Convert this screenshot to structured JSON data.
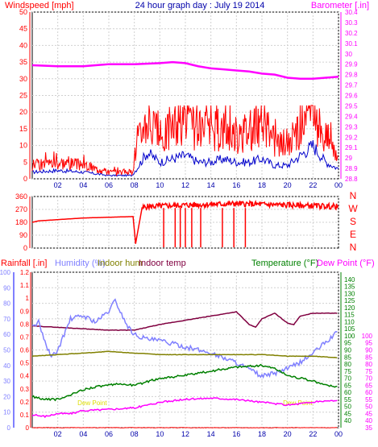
{
  "chart_data": [
    {
      "type": "line",
      "title": "24 hour graph day : July 19 2014",
      "ylabel": "Windspeed [mph]",
      "y2label": "Barometer [.in]",
      "colors": {
        "windspeed": "#ff0000",
        "windavg": "#0000cc",
        "barometer": "#ff00ff",
        "title": "#0000aa"
      },
      "xticks": [
        "02",
        "04",
        "06",
        "08",
        "10",
        "12",
        "14",
        "16",
        "18",
        "20",
        "22",
        "00"
      ],
      "yticks": [
        0,
        5,
        10,
        15,
        20,
        25,
        30,
        35,
        40,
        45,
        50
      ],
      "y2ticks": [
        "28.8",
        "28.9",
        "29",
        "29.1",
        "29.2",
        "29.3",
        "29.4",
        "29.5",
        "29.6",
        "29.7",
        "29.8",
        "29.9",
        "30",
        "30.1",
        "30.2",
        "30.3",
        "30.4"
      ],
      "ylim": [
        0,
        50
      ],
      "y2lim": [
        28.8,
        30.4
      ],
      "grid": true,
      "series": [
        {
          "key": "barometer",
          "axis": "right",
          "x": [
            0,
            2,
            4,
            6,
            8,
            10,
            11,
            12,
            13,
            14,
            15,
            16,
            17,
            18,
            19,
            20,
            21,
            22,
            23,
            24
          ],
          "values": [
            29.89,
            29.88,
            29.88,
            29.9,
            29.9,
            29.91,
            29.92,
            29.91,
            29.88,
            29.86,
            29.85,
            29.84,
            29.83,
            29.81,
            29.8,
            29.77,
            29.76,
            29.76,
            29.77,
            29.78
          ]
        },
        {
          "key": "windavg",
          "x": [
            0,
            2,
            4,
            6,
            7.8,
            8.2,
            9,
            10,
            11,
            12,
            13,
            14,
            15,
            16,
            17,
            18,
            19,
            20,
            21,
            22,
            23,
            24
          ],
          "values": [
            2,
            2.5,
            2,
            1,
            1,
            3,
            8,
            5,
            6,
            7,
            5,
            5,
            6,
            5,
            5,
            6,
            4,
            4,
            7,
            10,
            5,
            3
          ]
        },
        {
          "key": "windspeed",
          "x": [
            0,
            2,
            4,
            6,
            7.8,
            8.2,
            9,
            10,
            11,
            12,
            13,
            14,
            15,
            16,
            17,
            18,
            19,
            20,
            21,
            22,
            23,
            24
          ],
          "values": [
            4,
            5,
            4,
            2,
            2,
            10,
            18,
            12,
            15,
            17,
            14,
            14,
            15,
            13,
            15,
            16,
            11,
            10,
            16,
            20,
            12,
            8
          ]
        }
      ]
    },
    {
      "type": "line",
      "ylabel_letters": [
        "N",
        "W",
        "S",
        "E",
        "N"
      ],
      "colors": {
        "direction": "#ff0000",
        "letters": "#ff0000"
      },
      "yticks": [
        0,
        90,
        180,
        270,
        360
      ],
      "ylim": [
        0,
        360
      ],
      "grid": true,
      "series": [
        {
          "key": "direction",
          "x": [
            0,
            0.5,
            4,
            7.9,
            8.1,
            8.6,
            9,
            12,
            16,
            20,
            24
          ],
          "values": [
            180,
            190,
            210,
            220,
            30,
            280,
            290,
            300,
            310,
            300,
            290
          ]
        }
      ]
    },
    {
      "type": "line",
      "labels": [
        "Rainfall [.in]",
        "Humidity (%)",
        "Indoor hum",
        "Indoor temp",
        "Temperature (°F)",
        "Dew Point (°F)"
      ],
      "colors": {
        "rainfall": "#ff0000",
        "humidity": "#8080ff",
        "indoorhum": "#808000",
        "indoortemp": "#800040",
        "temperature": "#008000",
        "dewpoint": "#ff00ff"
      },
      "xticks": [
        "02",
        "04",
        "06",
        "08",
        "10",
        "12",
        "14",
        "16",
        "18",
        "20",
        "22",
        "00"
      ],
      "rain_ticks": [
        "0",
        "0.1",
        "0.2",
        "0.3",
        "0.4",
        "0.5",
        "0.6",
        "0.7",
        "0.8",
        "0.9",
        "1",
        "1.1",
        "1.2"
      ],
      "hum_ticks": [
        0,
        10,
        20,
        30,
        40,
        50,
        60,
        70,
        80,
        90,
        100
      ],
      "temp_ticks": [
        40,
        45,
        50,
        55,
        60,
        65,
        70,
        75,
        80,
        85,
        90,
        95,
        100,
        105,
        110,
        115,
        120,
        125,
        130,
        135,
        140
      ],
      "dew_ticks": [
        35,
        40,
        45,
        50,
        55,
        60,
        65,
        70,
        75,
        80,
        85,
        90,
        95,
        100
      ],
      "annotations": [
        "Dew Point",
        "Dew Point"
      ],
      "ylim_hum": [
        0,
        100
      ],
      "ylim_temp": [
        35,
        145
      ],
      "grid": true,
      "series": [
        {
          "key": "indoortemp",
          "axis": "temp",
          "x": [
            0,
            2,
            4,
            6,
            8,
            10,
            12,
            14,
            16,
            17,
            17.5,
            18,
            19,
            20,
            20.5,
            21,
            22,
            23,
            24
          ],
          "values": [
            107,
            106,
            105,
            104,
            104,
            108,
            111,
            114,
            117,
            108,
            106,
            112,
            116,
            109,
            108,
            114,
            116,
            116,
            116
          ]
        },
        {
          "key": "humidity",
          "axis": "hum",
          "x": [
            0,
            0.5,
            1,
            1.5,
            2,
            3,
            4,
            5,
            6,
            6.5,
            7,
            7.5,
            8,
            9,
            10,
            12,
            14,
            16,
            18,
            19,
            20,
            21,
            22,
            23,
            24
          ],
          "values": [
            65,
            68,
            55,
            45,
            50,
            70,
            72,
            68,
            75,
            82,
            73,
            65,
            60,
            57,
            56,
            52,
            48,
            42,
            33,
            35,
            38,
            42,
            48,
            55,
            62
          ]
        },
        {
          "key": "indoorhum",
          "axis": "hum",
          "x": [
            0,
            2,
            4,
            6,
            8,
            10,
            12,
            14,
            16,
            18,
            20,
            22,
            24
          ],
          "values": [
            46,
            47,
            48,
            49,
            48,
            47,
            47,
            47,
            47,
            47,
            46,
            46,
            45
          ]
        },
        {
          "key": "temperature",
          "axis": "temp",
          "x": [
            0,
            1,
            2,
            3,
            4,
            5,
            6,
            7,
            8,
            10,
            12,
            14,
            16,
            18,
            19,
            20,
            21,
            22,
            23,
            24
          ],
          "values": [
            57,
            55,
            55,
            58,
            62,
            64,
            65,
            66,
            65,
            70,
            72,
            75,
            78,
            79,
            77,
            72,
            70,
            68,
            65,
            64
          ]
        },
        {
          "key": "dewpoint",
          "axis": "temp",
          "x": [
            0,
            1,
            2,
            3,
            4,
            6,
            8,
            10,
            12,
            14,
            16,
            18,
            20,
            21,
            22,
            23,
            24
          ],
          "values": [
            44,
            43,
            45,
            45,
            47,
            48,
            49,
            53,
            55,
            56,
            55,
            53,
            51,
            52,
            53,
            54,
            54
          ]
        },
        {
          "key": "rainfall",
          "axis": "hum",
          "x": [
            0,
            24
          ],
          "values": [
            0,
            0
          ]
        }
      ]
    }
  ]
}
